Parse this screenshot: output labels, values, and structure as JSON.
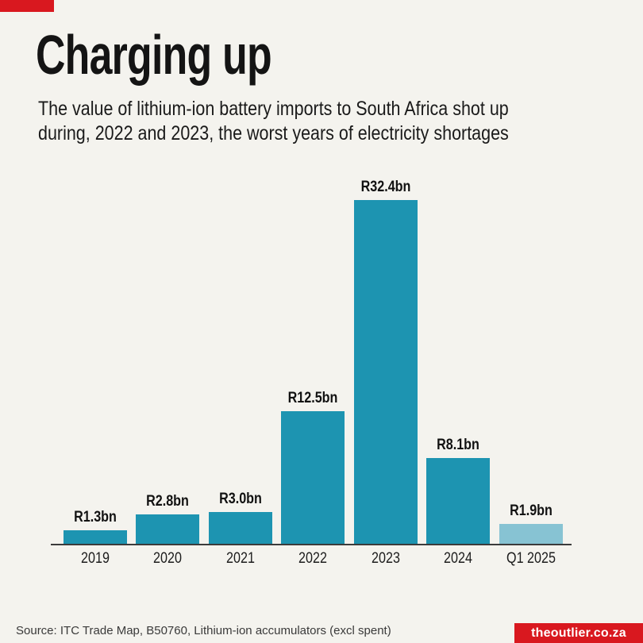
{
  "page": {
    "background": "#f4f3ee",
    "accent_red": "#d9181f"
  },
  "header": {
    "title": "Charging up",
    "subtitle_line1": "The value of lithium-ion battery imports to South Africa shot up",
    "subtitle_line2": "during, 2022 and 2023, the worst years of electricity shortages"
  },
  "chart_data": {
    "type": "bar",
    "title": "Charging up",
    "subtitle": "The value of lithium-ion battery imports to South Africa shot up during, 2022 and 2023, the worst years of electricity shortages",
    "categories": [
      "2019",
      "2020",
      "2021",
      "2022",
      "2023",
      "2024",
      "Q1 2025"
    ],
    "values": [
      1.3,
      2.8,
      3.0,
      12.5,
      32.4,
      8.1,
      1.9
    ],
    "value_labels": [
      "R1.3bn",
      "R2.8bn",
      "R3.0bn",
      "R12.5bn",
      "R32.4bn",
      "R8.1bn",
      "R1.9bn"
    ],
    "unit": "R bn",
    "bar_colors": [
      "#1d94b1",
      "#1d94b1",
      "#1d94b1",
      "#1d94b1",
      "#1d94b1",
      "#1d94b1",
      "#87c3d3"
    ],
    "bar_color_default": "#1d94b1",
    "bar_color_highlight": "#87c3d3",
    "axis_color": "#3b3b3b",
    "xlabel": "",
    "ylabel": "",
    "ylim": [
      0,
      32.4
    ],
    "grid": false,
    "legend_position": "none"
  },
  "footer": {
    "source": "Source: ITC Trade Map, B50760, Lithium-ion accumulators (excl spent)",
    "badge_label": "theoutlier.co.za",
    "badge_bg": "#d9181f",
    "badge_text_color": "#ffffff"
  }
}
